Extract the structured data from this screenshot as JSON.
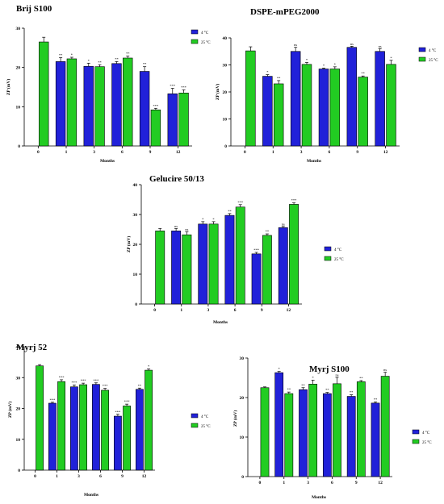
{
  "colors": {
    "c4": "#2121d9",
    "c25": "#22cc22"
  },
  "chart_data": [
    {
      "type": "bar",
      "title": "Brij S100",
      "xlabel": "Months",
      "ylabel": "ZP (mV)",
      "ylim": [
        0,
        30
      ],
      "yticks": [
        0,
        10,
        20,
        30
      ],
      "categories": [
        "0",
        "1",
        "3",
        "6",
        "9",
        "12"
      ],
      "legend_position": "right",
      "series": [
        {
          "name": "4 °C",
          "values": [
            null,
            21.5,
            20.3,
            21.0,
            19.0,
            13.3
          ],
          "errors": [
            null,
            1.0,
            0.8,
            0.5,
            1.2,
            1.4
          ],
          "sig": [
            null,
            "**",
            "*",
            "**",
            "**",
            "***"
          ]
        },
        {
          "name": "25 °C",
          "values": [
            26.5,
            22.2,
            20.2,
            22.4,
            9.2,
            13.5
          ],
          "errors": [
            1.2,
            0.4,
            0.5,
            0.5,
            0.4,
            0.8
          ],
          "sig": [
            null,
            "*",
            "**",
            "**",
            "***",
            "***"
          ]
        }
      ]
    },
    {
      "type": "bar",
      "title": "DSPE-mPEG2000",
      "xlabel": "Months",
      "ylabel": "ZP (mV)",
      "ylim": [
        0,
        40
      ],
      "yticks": [
        0,
        10,
        20,
        30,
        40
      ],
      "categories": [
        "0",
        "1",
        "3",
        "6",
        "9",
        "12"
      ],
      "legend_position": "right",
      "series": [
        {
          "name": "4 °C",
          "values": [
            null,
            25.8,
            35.0,
            28.5,
            36.5,
            35.0
          ],
          "errors": [
            null,
            0.6,
            1.5,
            0.3,
            0.4,
            1.0
          ],
          "sig": [
            null,
            "*",
            "ns",
            "*",
            "ns",
            "ns"
          ]
        },
        {
          "name": "25 °C",
          "values": [
            35.2,
            23.0,
            30.2,
            28.5,
            25.5,
            30.2
          ],
          "errors": [
            1.5,
            1.2,
            0.7,
            0.8,
            0.4,
            1.5
          ],
          "sig": [
            null,
            "**",
            "*",
            "*",
            "**",
            "*"
          ]
        }
      ]
    },
    {
      "type": "bar",
      "title": "Gelucire 50/13",
      "xlabel": "Months",
      "ylabel": "ZP (mV)",
      "ylim": [
        0,
        40
      ],
      "yticks": [
        0,
        10,
        20,
        30,
        40
      ],
      "categories": [
        "0",
        "1",
        "3",
        "6",
        "9",
        "12"
      ],
      "legend_position": "right",
      "series": [
        {
          "name": "4 °C",
          "values": [
            null,
            24.5,
            26.8,
            29.7,
            16.8,
            25.6
          ],
          "errors": [
            null,
            0.8,
            0.8,
            0.6,
            0.5,
            0.4
          ],
          "sig": [
            null,
            "ns",
            "*",
            "**",
            "***",
            "ns"
          ]
        },
        {
          "name": "25 °C",
          "values": [
            24.5,
            23.2,
            26.8,
            32.5,
            23.0,
            33.4
          ],
          "errors": [
            0.8,
            1.0,
            0.8,
            0.8,
            0.5,
            0.5
          ],
          "sig": [
            null,
            "ns",
            "*",
            "***",
            "**",
            "***"
          ]
        }
      ]
    },
    {
      "type": "bar",
      "title": "Myrj 52",
      "xlabel": "Months",
      "ylabel": "ZP (mV)",
      "ylim": [
        0,
        40
      ],
      "yticks": [
        0,
        10,
        20,
        30,
        40
      ],
      "categories": [
        "0",
        "1",
        "3",
        "6",
        "9",
        "12"
      ],
      "legend_position": "right",
      "series": [
        {
          "name": "4 °C",
          "values": [
            null,
            21.7,
            27.0,
            27.8,
            17.5,
            26.2
          ],
          "errors": [
            null,
            0.3,
            0.6,
            0.5,
            0.6,
            0.4
          ],
          "sig": [
            null,
            "***",
            "***",
            "***",
            "***",
            "**"
          ]
        },
        {
          "name": "25 °C",
          "values": [
            33.8,
            28.7,
            27.7,
            25.9,
            20.8,
            32.4
          ],
          "errors": [
            0.4,
            0.6,
            0.5,
            0.6,
            0.6,
            0.4
          ],
          "sig": [
            null,
            "***",
            "***",
            "***",
            "***",
            "*"
          ]
        }
      ]
    },
    {
      "type": "bar",
      "title": "Myrj S100",
      "xlabel": "Months",
      "ylabel": "ZP (mV)",
      "ylim": [
        0,
        30
      ],
      "yticks": [
        0,
        10,
        20,
        30
      ],
      "categories": [
        "0",
        "1",
        "3",
        "6",
        "9",
        "12"
      ],
      "legend_position": "right",
      "series": [
        {
          "name": "4 °C",
          "values": [
            null,
            26.3,
            22.0,
            21.0,
            20.3,
            18.6
          ],
          "errors": [
            null,
            0.3,
            0.5,
            0.3,
            0.4,
            0.3
          ],
          "sig": [
            null,
            "*",
            "**",
            "**",
            "**",
            "**"
          ]
        },
        {
          "name": "25 °C",
          "values": [
            22.5,
            21.0,
            23.4,
            23.5,
            24.0,
            25.4
          ],
          "errors": [
            0.2,
            0.4,
            1.0,
            1.6,
            0.3,
            1.0
          ],
          "sig": [
            null,
            "**",
            "*",
            "ns",
            "**",
            "ns"
          ]
        }
      ]
    }
  ]
}
